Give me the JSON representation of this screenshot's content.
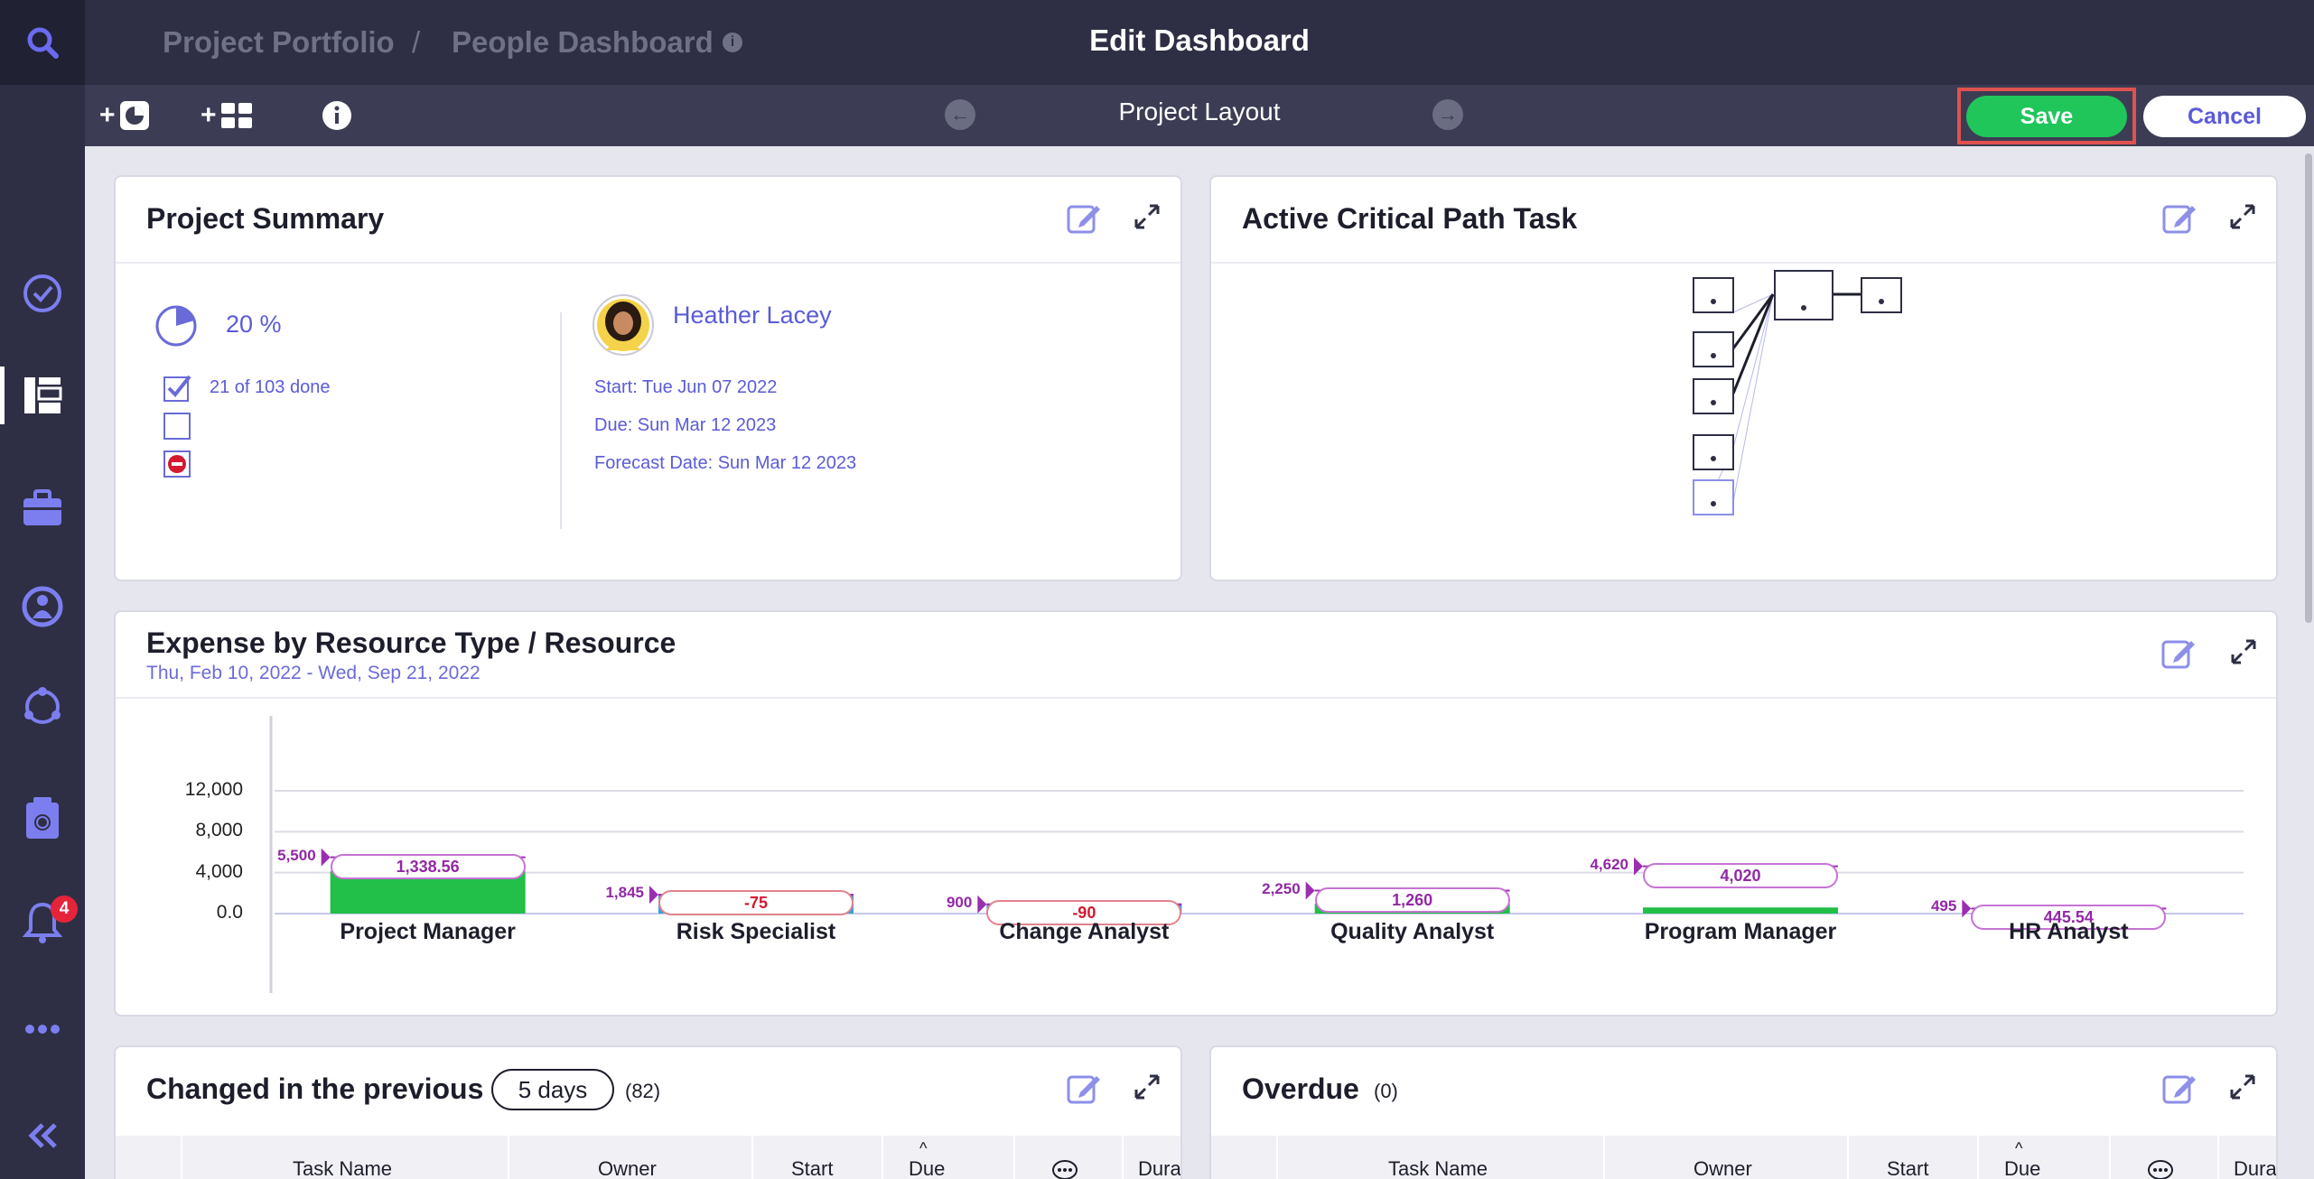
{
  "header": {
    "breadcrumb_root": "Project Portfolio",
    "breadcrumb_sep": "/",
    "breadcrumb_current": "People Dashboard",
    "title": "Edit Dashboard"
  },
  "toolbar": {
    "add_widget_label": "+",
    "add_layout_label": "+",
    "layout_title": "Project Layout",
    "save_label": "Save",
    "cancel_label": "Cancel"
  },
  "sidebar": {
    "notification_count": "4",
    "icons": [
      "search-icon",
      "check-circle-icon",
      "dashboard-layout-icon",
      "briefcase-icon",
      "people-icon",
      "network-icon",
      "timesheet-icon",
      "bell-icon",
      "more-icon",
      "collapse-icon"
    ]
  },
  "project_summary": {
    "title": "Project Summary",
    "percent": "20 %",
    "done_text": "21 of 103 done",
    "owner": "Heather Lacey",
    "start": "Start: Tue Jun 07 2022",
    "due": "Due: Sun Mar 12 2023",
    "forecast": "Forecast Date: Sun Mar 12 2023"
  },
  "critical_path": {
    "title": "Active Critical Path Task"
  },
  "expense": {
    "title": "Expense by Resource Type / Resource",
    "date_range": "Thu, Feb 10, 2022  -  Wed, Sep 21, 2022"
  },
  "chart_data": {
    "type": "bar",
    "title": "Expense by Resource Type / Resource",
    "yticks": [
      "12,000",
      "8,000",
      "4,000",
      "0.0"
    ],
    "ylim": [
      0,
      12000
    ],
    "categories": [
      "Project Manager",
      "Risk Specialist",
      "Change Analyst",
      "Quality Analyst",
      "Program Manager",
      "HR Analyst"
    ],
    "budget_values": [
      5500,
      1845,
      900,
      2250,
      4620,
      495
    ],
    "budget_labels": [
      "5,500",
      "1,845",
      "900",
      "2,250",
      "4,620",
      "495"
    ],
    "actual_values": [
      4161.44,
      1920,
      990,
      990,
      600,
      49.46
    ],
    "variance_labels": [
      "1,338.56",
      "-75",
      "-90",
      "1,260",
      "4,020",
      "445.54"
    ],
    "colors": {
      "bar": "#22bf49",
      "negative": "#d6172f",
      "marker": "#9b2eb0"
    }
  },
  "changed": {
    "title": "Changed in the previous",
    "days": "5 days",
    "count": "(82)",
    "columns": [
      "Task Name",
      "Owner",
      "Start",
      "Due",
      "Dura"
    ]
  },
  "overdue": {
    "title": "Overdue",
    "count": "(0)",
    "columns": [
      "Task Name",
      "Owner",
      "Start",
      "Due",
      "Dura"
    ]
  }
}
